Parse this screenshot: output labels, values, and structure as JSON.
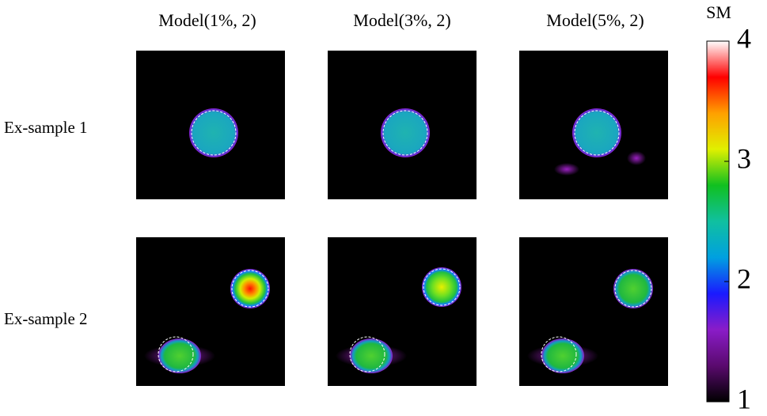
{
  "columns": [
    "Model(1%, 2)",
    "Model(3%, 2)",
    "Model(5%, 2)"
  ],
  "rows": [
    "Ex-sample 1",
    "Ex-sample 2"
  ],
  "colorbar": {
    "label": "SM",
    "lim": [
      1,
      4
    ],
    "ticks": [
      1,
      2,
      3,
      4
    ],
    "colormap": [
      "#000000",
      "#5a0a6e",
      "#8a1cc8",
      "#1a1aff",
      "#00a0e0",
      "#10c0a0",
      "#10c020",
      "#e0f000",
      "#ffa000",
      "#ff0000",
      "#ffffff"
    ]
  }
}
